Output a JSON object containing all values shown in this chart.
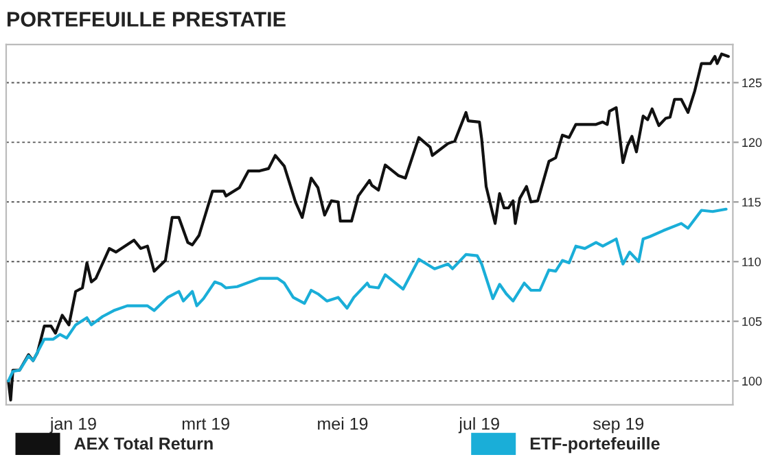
{
  "chart_data": {
    "type": "line",
    "title": "PORTEFEUILLE PRESTATIE",
    "xlim": [
      "2018-12-02",
      "2019-10-22"
    ],
    "xticks": [
      {
        "value": "2019-01-01",
        "label": "jan 19"
      },
      {
        "value": "2019-03-01",
        "label": "mrt 19"
      },
      {
        "value": "2019-05-01",
        "label": "mei 19"
      },
      {
        "value": "2019-07-01",
        "label": "jul 19"
      },
      {
        "value": "2019-09-01",
        "label": "sep 19"
      }
    ],
    "ylim": [
      98,
      128.2
    ],
    "yticks": [
      100,
      105,
      110,
      115,
      120,
      125
    ],
    "grid": "y",
    "legend": "bottom",
    "line_style": "solid",
    "series": [
      {
        "name": "AEX Total Return",
        "color": "#111111",
        "x": [
          "2018-12-03",
          "2018-12-04",
          "2018-12-05",
          "2018-12-08",
          "2018-12-12",
          "2018-12-14",
          "2018-12-16",
          "2018-12-19",
          "2018-12-22",
          "2018-12-24",
          "2018-12-27",
          "2018-12-30",
          "2019-01-02",
          "2019-01-05",
          "2019-01-07",
          "2019-01-09",
          "2019-01-11",
          "2019-01-17",
          "2019-01-20",
          "2019-01-28",
          "2019-01-31",
          "2019-02-03",
          "2019-02-06",
          "2019-02-11",
          "2019-02-14",
          "2019-02-17",
          "2019-02-21",
          "2019-02-23",
          "2019-02-26",
          "2019-03-04",
          "2019-03-09",
          "2019-03-10",
          "2019-03-16",
          "2019-03-20",
          "2019-03-25",
          "2019-03-29",
          "2019-04-01",
          "2019-04-05",
          "2019-04-08",
          "2019-04-10",
          "2019-04-13",
          "2019-04-17",
          "2019-04-20",
          "2019-04-23",
          "2019-04-26",
          "2019-04-29",
          "2019-04-30",
          "2019-05-05",
          "2019-05-08",
          "2019-05-13",
          "2019-05-14",
          "2019-05-17",
          "2019-05-20",
          "2019-05-26",
          "2019-05-29",
          "2019-06-04",
          "2019-06-09",
          "2019-06-10",
          "2019-06-17",
          "2019-06-20",
          "2019-06-25",
          "2019-06-26",
          "2019-07-01",
          "2019-07-02",
          "2019-07-04",
          "2019-07-08",
          "2019-07-10",
          "2019-07-12",
          "2019-07-14",
          "2019-07-16",
          "2019-07-17",
          "2019-07-19",
          "2019-07-22",
          "2019-07-24",
          "2019-07-27",
          "2019-08-01",
          "2019-08-04",
          "2019-08-07",
          "2019-08-10",
          "2019-08-13",
          "2019-08-17",
          "2019-08-22",
          "2019-08-25",
          "2019-08-27",
          "2019-08-28",
          "2019-08-31",
          "2019-09-03",
          "2019-09-05",
          "2019-09-07",
          "2019-09-09",
          "2019-09-12",
          "2019-09-14",
          "2019-09-16",
          "2019-09-19",
          "2019-09-22",
          "2019-09-24",
          "2019-09-26",
          "2019-09-29",
          "2019-10-02",
          "2019-10-05",
          "2019-10-08",
          "2019-10-12",
          "2019-10-14",
          "2019-10-15",
          "2019-10-17",
          "2019-10-20"
        ],
        "values": [
          100,
          98.4,
          100.9,
          100.9,
          102.2,
          101.7,
          102.4,
          104.6,
          104.6,
          104.0,
          105.5,
          104.7,
          107.5,
          107.8,
          109.9,
          108.3,
          108.6,
          111.1,
          110.8,
          111.8,
          111.1,
          111.3,
          109.2,
          110.1,
          113.7,
          113.7,
          111.6,
          111.4,
          112.2,
          115.9,
          115.9,
          115.5,
          116.2,
          117.6,
          117.6,
          117.8,
          118.9,
          118.0,
          116.2,
          115.0,
          113.7,
          117.0,
          116.2,
          113.9,
          115.1,
          115.0,
          113.4,
          113.4,
          115.5,
          116.8,
          116.4,
          116.0,
          118.1,
          117.2,
          117.0,
          120.4,
          119.6,
          118.9,
          119.9,
          120.1,
          122.5,
          121.8,
          121.7,
          120.3,
          116.3,
          113.2,
          115.7,
          114.5,
          114.5,
          115.1,
          113.2,
          115.3,
          116.3,
          115.0,
          115.1,
          118.4,
          118.7,
          120.6,
          120.4,
          121.5,
          121.5,
          121.5,
          121.7,
          121.5,
          122.6,
          122.9,
          118.3,
          119.7,
          120.5,
          119.2,
          122.2,
          121.9,
          122.8,
          121.4,
          122.0,
          122.1,
          123.6,
          123.6,
          122.5,
          124.3,
          126.6,
          126.6,
          127.2,
          126.6,
          127.4,
          127.2
        ]
      },
      {
        "name": "ETF-portefeuille",
        "color": "#1aaed8",
        "x": [
          "2018-12-03",
          "2018-12-05",
          "2018-12-08",
          "2018-12-12",
          "2018-12-14",
          "2018-12-19",
          "2018-12-23",
          "2018-12-26",
          "2018-12-29",
          "2019-01-02",
          "2019-01-07",
          "2019-01-09",
          "2019-01-14",
          "2019-01-19",
          "2019-01-25",
          "2019-02-03",
          "2019-02-06",
          "2019-02-12",
          "2019-02-17",
          "2019-02-19",
          "2019-02-23",
          "2019-02-25",
          "2019-02-28",
          "2019-03-05",
          "2019-03-08",
          "2019-03-10",
          "2019-03-15",
          "2019-03-25",
          "2019-04-02",
          "2019-04-05",
          "2019-04-09",
          "2019-04-14",
          "2019-04-17",
          "2019-04-20",
          "2019-04-24",
          "2019-04-29",
          "2019-05-03",
          "2019-05-06",
          "2019-05-12",
          "2019-05-13",
          "2019-05-17",
          "2019-05-20",
          "2019-05-28",
          "2019-06-04",
          "2019-06-11",
          "2019-06-17",
          "2019-06-19",
          "2019-06-25",
          "2019-06-30",
          "2019-07-02",
          "2019-07-07",
          "2019-07-10",
          "2019-07-13",
          "2019-07-16",
          "2019-07-21",
          "2019-07-24",
          "2019-07-28",
          "2019-08-01",
          "2019-08-04",
          "2019-08-07",
          "2019-08-10",
          "2019-08-13",
          "2019-08-17",
          "2019-08-22",
          "2019-08-25",
          "2019-08-31",
          "2019-09-03",
          "2019-09-06",
          "2019-09-10",
          "2019-09-12",
          "2019-09-15",
          "2019-09-21",
          "2019-09-29",
          "2019-10-02",
          "2019-10-08",
          "2019-10-13",
          "2019-10-19"
        ],
        "values": [
          100,
          100.8,
          100.9,
          102.1,
          101.7,
          103.5,
          103.5,
          103.9,
          103.6,
          104.7,
          105.3,
          104.7,
          105.4,
          105.9,
          106.3,
          106.3,
          105.9,
          107.0,
          107.5,
          106.7,
          107.5,
          106.3,
          106.9,
          108.3,
          108.1,
          107.8,
          107.9,
          108.6,
          108.6,
          108.2,
          107.0,
          106.5,
          107.6,
          107.3,
          106.7,
          107.0,
          106.1,
          107.0,
          108.2,
          107.9,
          107.8,
          108.9,
          107.7,
          110.2,
          109.4,
          109.8,
          109.4,
          110.6,
          110.5,
          109.8,
          106.9,
          108.1,
          107.3,
          106.7,
          108.2,
          107.6,
          107.6,
          109.3,
          109.2,
          110.1,
          109.9,
          111.3,
          111.1,
          111.6,
          111.3,
          111.9,
          109.8,
          110.8,
          110.0,
          111.9,
          112.1,
          112.6,
          113.2,
          112.8,
          114.3,
          114.2,
          114.4
        ]
      }
    ]
  }
}
